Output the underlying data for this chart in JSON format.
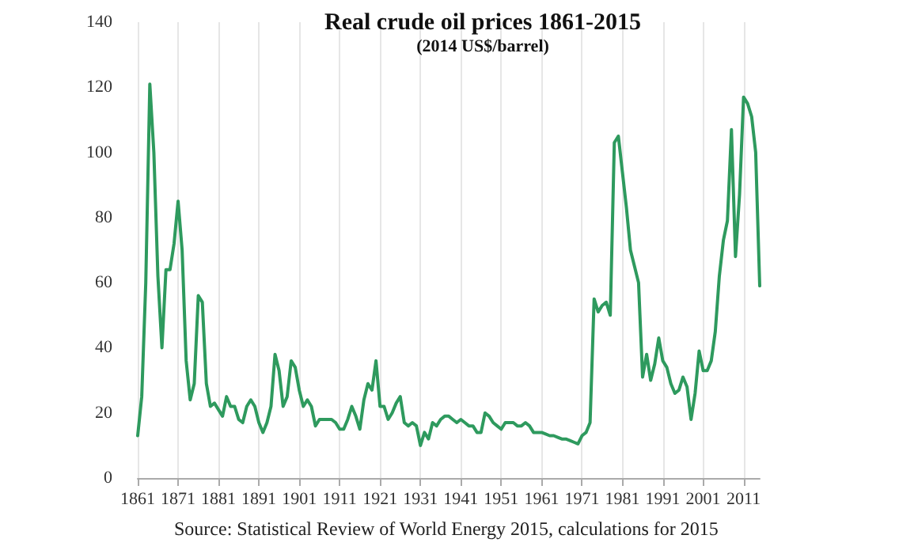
{
  "chart_data": {
    "type": "line",
    "title": "Real crude oil prices 1861-2015",
    "subtitle": "(2014 US$/barrel)",
    "annotations": [
      "Source: Statistical Review of World Energy 2015, calculations for 2015"
    ],
    "x": [
      1861,
      1862,
      1863,
      1864,
      1865,
      1866,
      1867,
      1868,
      1869,
      1870,
      1871,
      1872,
      1873,
      1874,
      1875,
      1876,
      1877,
      1878,
      1879,
      1880,
      1881,
      1882,
      1883,
      1884,
      1885,
      1886,
      1887,
      1888,
      1889,
      1890,
      1891,
      1892,
      1893,
      1894,
      1895,
      1896,
      1897,
      1898,
      1899,
      1900,
      1901,
      1902,
      1903,
      1904,
      1905,
      1906,
      1907,
      1908,
      1909,
      1910,
      1911,
      1912,
      1913,
      1914,
      1915,
      1916,
      1917,
      1918,
      1919,
      1920,
      1921,
      1922,
      1923,
      1924,
      1925,
      1926,
      1927,
      1928,
      1929,
      1930,
      1931,
      1932,
      1933,
      1934,
      1935,
      1936,
      1937,
      1938,
      1939,
      1940,
      1941,
      1942,
      1943,
      1944,
      1945,
      1946,
      1947,
      1948,
      1949,
      1950,
      1951,
      1952,
      1953,
      1954,
      1955,
      1956,
      1957,
      1958,
      1959,
      1960,
      1961,
      1962,
      1963,
      1964,
      1965,
      1966,
      1967,
      1968,
      1969,
      1970,
      1971,
      1972,
      1973,
      1974,
      1975,
      1976,
      1977,
      1978,
      1979,
      1980,
      1981,
      1982,
      1983,
      1984,
      1985,
      1986,
      1987,
      1988,
      1989,
      1990,
      1991,
      1992,
      1993,
      1994,
      1995,
      1996,
      1997,
      1998,
      1999,
      2000,
      2001,
      2002,
      2003,
      2004,
      2005,
      2006,
      2007,
      2008,
      2009,
      2010,
      2011,
      2012,
      2013,
      2014,
      2015
    ],
    "series": [
      {
        "color": "#2e9a5e",
        "values": [
          13,
          25,
          60,
          121,
          100,
          62,
          40,
          64,
          64,
          72,
          85,
          70,
          36,
          24,
          29,
          56,
          54,
          29,
          22,
          23,
          21,
          19,
          25,
          22,
          22,
          18,
          17,
          22,
          24,
          22,
          17,
          14,
          17,
          22,
          38,
          33,
          22,
          25,
          36,
          34,
          27,
          22,
          24,
          22,
          16,
          18,
          18,
          18,
          18,
          17,
          15,
          15,
          18,
          22,
          19,
          15,
          24,
          29,
          27,
          36,
          22,
          22,
          18,
          20,
          23,
          25,
          17,
          16,
          17,
          16,
          10,
          14,
          12,
          17,
          16,
          18,
          19,
          19,
          18,
          17,
          18,
          17,
          16,
          16,
          14,
          14,
          20,
          19,
          17,
          16,
          15,
          17,
          17,
          17,
          16,
          16,
          17,
          16,
          14,
          14,
          14,
          13.5,
          13,
          13,
          12.5,
          12,
          12,
          11.5,
          11,
          10.5,
          13,
          14,
          17,
          55,
          51,
          53,
          54,
          50,
          103,
          105,
          94,
          83,
          70,
          65,
          60,
          31,
          38,
          30,
          35,
          43,
          36,
          34,
          29,
          26,
          27,
          31,
          28,
          18,
          26,
          39,
          33,
          33,
          36,
          45,
          62,
          73,
          79,
          107,
          68,
          87,
          117,
          115,
          111,
          100,
          59
        ]
      }
    ],
    "xlim": [
      1861,
      2015
    ],
    "xticks": [
      1861,
      1871,
      1881,
      1891,
      1901,
      1911,
      1921,
      1931,
      1941,
      1951,
      1961,
      1971,
      1981,
      1991,
      2001,
      2011
    ],
    "ylim": [
      0,
      140
    ],
    "yticks": [
      0,
      20,
      40,
      60,
      80,
      100,
      120,
      140
    ],
    "grid": "x",
    "marker": "none",
    "line_style": "solid"
  }
}
